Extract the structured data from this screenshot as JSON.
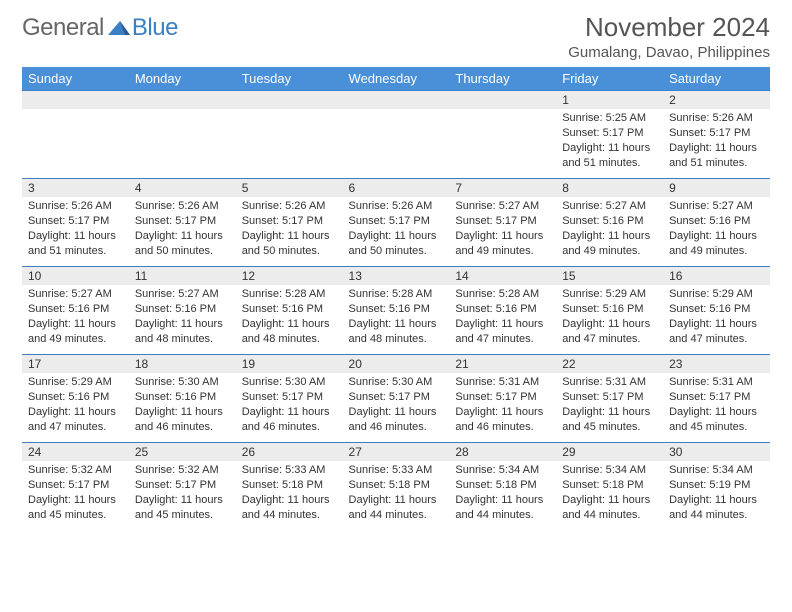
{
  "logo": {
    "text1": "General",
    "text2": "Blue"
  },
  "title": "November 2024",
  "location": "Gumalang, Davao, Philippines",
  "colors": {
    "header_bg": "#4a90d9",
    "daynum_bg": "#ececec",
    "rule": "#3b7fc4",
    "text": "#333333"
  },
  "weekdays": [
    "Sunday",
    "Monday",
    "Tuesday",
    "Wednesday",
    "Thursday",
    "Friday",
    "Saturday"
  ],
  "weeks": [
    [
      null,
      null,
      null,
      null,
      null,
      {
        "n": "1",
        "sunrise": "5:25 AM",
        "sunset": "5:17 PM",
        "dl": "11 hours and 51 minutes."
      },
      {
        "n": "2",
        "sunrise": "5:26 AM",
        "sunset": "5:17 PM",
        "dl": "11 hours and 51 minutes."
      }
    ],
    [
      {
        "n": "3",
        "sunrise": "5:26 AM",
        "sunset": "5:17 PM",
        "dl": "11 hours and 51 minutes."
      },
      {
        "n": "4",
        "sunrise": "5:26 AM",
        "sunset": "5:17 PM",
        "dl": "11 hours and 50 minutes."
      },
      {
        "n": "5",
        "sunrise": "5:26 AM",
        "sunset": "5:17 PM",
        "dl": "11 hours and 50 minutes."
      },
      {
        "n": "6",
        "sunrise": "5:26 AM",
        "sunset": "5:17 PM",
        "dl": "11 hours and 50 minutes."
      },
      {
        "n": "7",
        "sunrise": "5:27 AM",
        "sunset": "5:17 PM",
        "dl": "11 hours and 49 minutes."
      },
      {
        "n": "8",
        "sunrise": "5:27 AM",
        "sunset": "5:16 PM",
        "dl": "11 hours and 49 minutes."
      },
      {
        "n": "9",
        "sunrise": "5:27 AM",
        "sunset": "5:16 PM",
        "dl": "11 hours and 49 minutes."
      }
    ],
    [
      {
        "n": "10",
        "sunrise": "5:27 AM",
        "sunset": "5:16 PM",
        "dl": "11 hours and 49 minutes."
      },
      {
        "n": "11",
        "sunrise": "5:27 AM",
        "sunset": "5:16 PM",
        "dl": "11 hours and 48 minutes."
      },
      {
        "n": "12",
        "sunrise": "5:28 AM",
        "sunset": "5:16 PM",
        "dl": "11 hours and 48 minutes."
      },
      {
        "n": "13",
        "sunrise": "5:28 AM",
        "sunset": "5:16 PM",
        "dl": "11 hours and 48 minutes."
      },
      {
        "n": "14",
        "sunrise": "5:28 AM",
        "sunset": "5:16 PM",
        "dl": "11 hours and 47 minutes."
      },
      {
        "n": "15",
        "sunrise": "5:29 AM",
        "sunset": "5:16 PM",
        "dl": "11 hours and 47 minutes."
      },
      {
        "n": "16",
        "sunrise": "5:29 AM",
        "sunset": "5:16 PM",
        "dl": "11 hours and 47 minutes."
      }
    ],
    [
      {
        "n": "17",
        "sunrise": "5:29 AM",
        "sunset": "5:16 PM",
        "dl": "11 hours and 47 minutes."
      },
      {
        "n": "18",
        "sunrise": "5:30 AM",
        "sunset": "5:16 PM",
        "dl": "11 hours and 46 minutes."
      },
      {
        "n": "19",
        "sunrise": "5:30 AM",
        "sunset": "5:17 PM",
        "dl": "11 hours and 46 minutes."
      },
      {
        "n": "20",
        "sunrise": "5:30 AM",
        "sunset": "5:17 PM",
        "dl": "11 hours and 46 minutes."
      },
      {
        "n": "21",
        "sunrise": "5:31 AM",
        "sunset": "5:17 PM",
        "dl": "11 hours and 46 minutes."
      },
      {
        "n": "22",
        "sunrise": "5:31 AM",
        "sunset": "5:17 PM",
        "dl": "11 hours and 45 minutes."
      },
      {
        "n": "23",
        "sunrise": "5:31 AM",
        "sunset": "5:17 PM",
        "dl": "11 hours and 45 minutes."
      }
    ],
    [
      {
        "n": "24",
        "sunrise": "5:32 AM",
        "sunset": "5:17 PM",
        "dl": "11 hours and 45 minutes."
      },
      {
        "n": "25",
        "sunrise": "5:32 AM",
        "sunset": "5:17 PM",
        "dl": "11 hours and 45 minutes."
      },
      {
        "n": "26",
        "sunrise": "5:33 AM",
        "sunset": "5:18 PM",
        "dl": "11 hours and 44 minutes."
      },
      {
        "n": "27",
        "sunrise": "5:33 AM",
        "sunset": "5:18 PM",
        "dl": "11 hours and 44 minutes."
      },
      {
        "n": "28",
        "sunrise": "5:34 AM",
        "sunset": "5:18 PM",
        "dl": "11 hours and 44 minutes."
      },
      {
        "n": "29",
        "sunrise": "5:34 AM",
        "sunset": "5:18 PM",
        "dl": "11 hours and 44 minutes."
      },
      {
        "n": "30",
        "sunrise": "5:34 AM",
        "sunset": "5:19 PM",
        "dl": "11 hours and 44 minutes."
      }
    ]
  ],
  "labels": {
    "sunrise": "Sunrise: ",
    "sunset": "Sunset: ",
    "daylight": "Daylight: "
  }
}
